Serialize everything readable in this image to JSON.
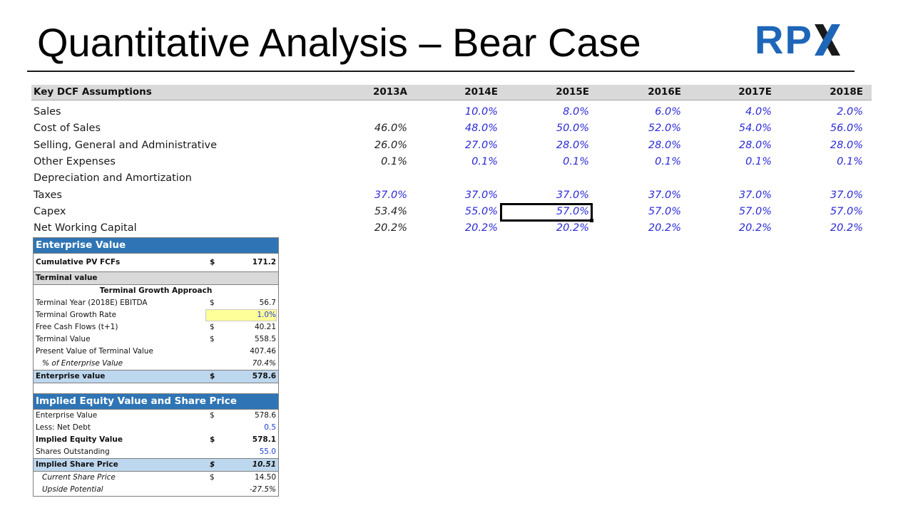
{
  "slide": {
    "title": "Quantitative Analysis – Bear Case",
    "logo_text": "RP",
    "logo_accent_colors": [
      "#1e66b8",
      "#1a1a1a"
    ]
  },
  "dcf": {
    "header_label": "Key DCF Assumptions",
    "years": [
      "2013A",
      "2014E",
      "2015E",
      "2016E",
      "2017E",
      "2018E"
    ],
    "rows": [
      {
        "label": "Sales",
        "values": [
          "",
          "10.0%",
          "8.0%",
          "6.0%",
          "4.0%",
          "2.0%"
        ]
      },
      {
        "label": "Cost of Sales",
        "values": [
          "46.0%",
          "48.0%",
          "50.0%",
          "52.0%",
          "54.0%",
          "56.0%"
        ]
      },
      {
        "label": "Selling, General and Administrative",
        "values": [
          "26.0%",
          "27.0%",
          "28.0%",
          "28.0%",
          "28.0%",
          "28.0%"
        ]
      },
      {
        "label": "Other Expenses",
        "values": [
          "0.1%",
          "0.1%",
          "0.1%",
          "0.1%",
          "0.1%",
          "0.1%"
        ]
      },
      {
        "label": "Depreciation and Amortization",
        "values": [
          "",
          "",
          "",
          "",
          "",
          ""
        ]
      },
      {
        "label": "Taxes",
        "values": [
          "37.0%",
          "37.0%",
          "37.0%",
          "37.0%",
          "37.0%",
          "37.0%"
        ]
      },
      {
        "label": "Capex",
        "values": [
          "53.4%",
          "55.0%",
          "57.0%",
          "57.0%",
          "57.0%",
          "57.0%"
        ]
      },
      {
        "label": "Net Working Capital",
        "values": [
          "20.2%",
          "20.2%",
          "20.2%",
          "20.2%",
          "20.2%",
          "20.2%"
        ]
      }
    ]
  },
  "ev": {
    "header": "Enterprise Value",
    "cum_pv_label": "Cumulative PV FCFs",
    "cum_pv_cur": "$",
    "cum_pv_val": "171.2",
    "terminal_label": "Terminal value",
    "approach_label": "Terminal Growth Approach",
    "ty_label": "Terminal Year (2018E) EBITDA",
    "ty_cur": "$",
    "ty_val": "56.7",
    "tgr_label": "Terminal Growth Rate",
    "tgr_val": "1.0%",
    "fcf_label": "Free Cash Flows (t+1)",
    "fcf_cur": "$",
    "fcf_val": "40.21",
    "tv_label": "Terminal Value",
    "tv_cur": "$",
    "tv_val": "558.5",
    "pvtv_label": "Present Value of Terminal Value",
    "pvtv_val": "407.46",
    "pct_label": "% of Enterprise Value",
    "pct_val": "70.4%",
    "evtot_label": "Enterprise value",
    "evtot_cur": "$",
    "evtot_val": "578.6"
  },
  "equity": {
    "header": "Implied Equity Value and Share Price",
    "ev_label": "Enterprise Value",
    "ev_cur": "$",
    "ev_val": "578.6",
    "debt_label": "Less: Net Debt",
    "debt_val": "0.5",
    "iev_label": "Implied Equity Value",
    "iev_cur": "$",
    "iev_val": "578.1",
    "shares_label": "Shares Outstanding",
    "shares_val": "55.0",
    "isp_label": "Implied Share Price",
    "isp_cur": "$",
    "isp_val": "10.51",
    "csp_label": "Current Share Price",
    "csp_cur": "$",
    "csp_val": "14.50",
    "up_label": "Upside Potential",
    "up_val": "-27.5%"
  }
}
